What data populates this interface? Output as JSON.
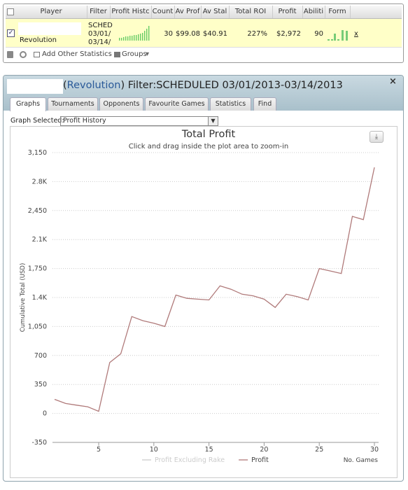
{
  "stats_table": {
    "headers": [
      "Player",
      "Filter",
      "Profit Histc",
      "Count",
      "Av Prof",
      "Av Stal",
      "Total ROI",
      "Profit",
      "Abiliti",
      "Form"
    ],
    "row": {
      "player": "Revolution",
      "filter": [
        "SCHED",
        "03/01/",
        "03/14/"
      ],
      "count": "30",
      "av_profit": "$99.08",
      "av_stake": "$40.91",
      "total_roi": "227%",
      "profit": "$2,972",
      "ability": "90",
      "remove": "x"
    }
  },
  "toolbar": {
    "add_stats": "Add Other Statistics",
    "groups": "Groups"
  },
  "window": {
    "title": [
      "(",
      "Revolution",
      ") Filter:SCHEDULED 03/01/2013-03/14/2013"
    ],
    "tabs": [
      "Graphs",
      "Tournaments",
      "Opponents",
      "Favourite Games",
      "Statistics",
      "Find"
    ],
    "graph_selected_label": "Graph Selected:",
    "graph_selected": "Profit History"
  },
  "chart_data": {
    "type": "line",
    "title": "Total Profit",
    "subtitle": "Click and drag inside the plot area to zoom-in",
    "y_label": "Cumulative Total (USD)",
    "x_label": "No. Games",
    "x": [
      1,
      2,
      3,
      4,
      5,
      6,
      7,
      8,
      9,
      10,
      11,
      12,
      13,
      14,
      15,
      16,
      17,
      18,
      19,
      20,
      21,
      22,
      23,
      24,
      25,
      26,
      27,
      28,
      29,
      30
    ],
    "series": [
      {
        "name": "Profit Excluding Rake",
        "color": "#cccccc",
        "hidden": true
      },
      {
        "name": "Profit",
        "color": "#b07a7a",
        "values": [
          170,
          120,
          100,
          80,
          25,
          615,
          720,
          1170,
          1120,
          1090,
          1050,
          1430,
          1390,
          1380,
          1370,
          1540,
          1500,
          1440,
          1420,
          1380,
          1280,
          1440,
          1410,
          1370,
          1750,
          1720,
          1690,
          2380,
          2340,
          2972
        ]
      }
    ],
    "xlim": [
      1,
      30
    ],
    "xticks": [
      5,
      10,
      15,
      20,
      25,
      30
    ],
    "ylim": [
      -350,
      3150
    ],
    "yticks": [
      {
        "value": 3150,
        "label": "3,150"
      },
      {
        "value": 2800,
        "label": "2.8K"
      },
      {
        "value": 2450,
        "label": "2,450"
      },
      {
        "value": 2100,
        "label": "2.1K"
      },
      {
        "value": 1750,
        "label": "1,750"
      },
      {
        "value": 1400,
        "label": "1.4K"
      },
      {
        "value": 1050,
        "label": "1,050"
      },
      700,
      350,
      0,
      -350
    ],
    "grid": true
  }
}
